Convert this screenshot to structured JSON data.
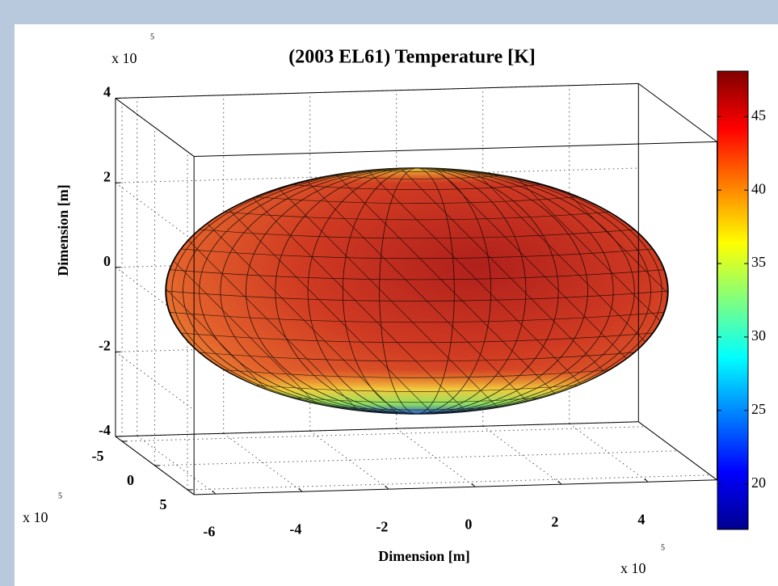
{
  "chart_data": {
    "type": "surface3d",
    "title": "(2003 EL61) Temperature [K]",
    "xlabel": "Dimension [m]",
    "zlabel": "Dimension [m]",
    "xlim": [
      -6.5,
      5.6
    ],
    "xticks": [
      -6,
      -4,
      -2,
      0,
      2,
      4
    ],
    "ylim": [
      -6,
      6
    ],
    "yticks": [
      -5,
      0,
      5
    ],
    "zlim": [
      -4,
      4
    ],
    "zticks": [
      -4,
      -2,
      0,
      2,
      4
    ],
    "grid": true,
    "colormap": "jet",
    "colorbar": {
      "clim": [
        16.9,
        48.1
      ],
      "ticks": [
        20,
        25,
        30,
        35,
        40,
        45
      ]
    },
    "exponent_labels": [
      {
        "base": "x 10",
        "power": "5"
      },
      {
        "base": "x 10",
        "power": "5"
      },
      {
        "base": "x 10",
        "power": "5"
      }
    ]
  }
}
